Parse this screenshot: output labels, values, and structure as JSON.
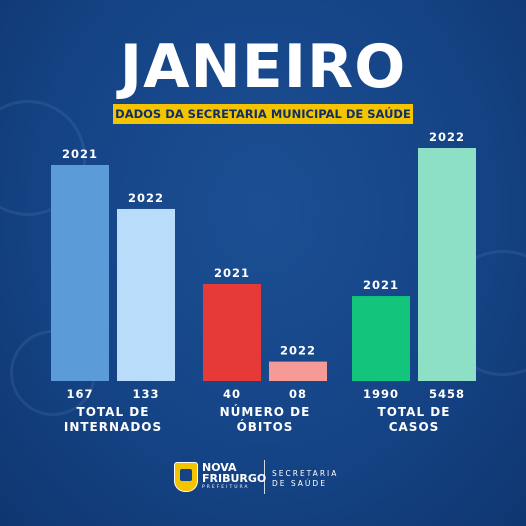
{
  "header": {
    "title": "JANEIRO",
    "subtitle": "DADOS DA SECRETARIA MUNICIPAL DE SAÚDE"
  },
  "chart_data": {
    "type": "bar",
    "title": "JANEIRO",
    "subtitle": "DADOS DA SECRETARIA MUNICIPAL DE SAÚDE",
    "groups": [
      {
        "label_lines": [
          "TOTAL DE",
          "INTERNADOS"
        ],
        "bars": [
          {
            "year": "2021",
            "value": 167,
            "value_label": "167",
            "color": "#5b9bd8"
          },
          {
            "year": "2022",
            "value": 133,
            "value_label": "133",
            "color": "#b9dcfb"
          }
        ]
      },
      {
        "label_lines": [
          "NÚMERO DE",
          "ÓBITOS"
        ],
        "bars": [
          {
            "year": "2021",
            "value": 40,
            "value_label": "40",
            "color": "#e53a38"
          },
          {
            "year": "2022",
            "value": 8,
            "value_label": "08",
            "color": "#f59a96"
          }
        ]
      },
      {
        "label_lines": [
          "TOTAL DE",
          "CASOS"
        ],
        "bars": [
          {
            "year": "2021",
            "value": 1990,
            "value_label": "1990",
            "color": "#12c47c"
          },
          {
            "year": "2022",
            "value": 5458,
            "value_label": "5458",
            "color": "#8de0c6"
          }
        ]
      }
    ],
    "xlabel": "",
    "ylabel": "",
    "grid": false
  },
  "footer": {
    "logo_line1": "NOVA",
    "logo_line2": "FRIBURGO",
    "logo_line3": "PREFEITURA",
    "department_line1": "SECRETARIA",
    "department_line2": "DE SAÚDE"
  }
}
